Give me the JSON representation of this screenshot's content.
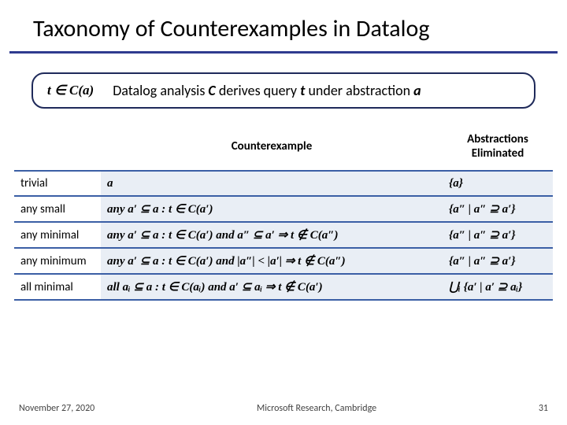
{
  "title": "Taxonomy of Counterexamples in Datalog",
  "defbox": {
    "formula": "t ∈ C(a)",
    "text_prefix": "Datalog analysis ",
    "c": "C",
    "text_mid1": " derives query ",
    "t": "t",
    "text_mid2": " under abstraction ",
    "a": "a"
  },
  "headers": {
    "kind": "",
    "counter": "Counterexample",
    "abst": "Abstractions Eliminated"
  },
  "rows": [
    {
      "kind": "trivial",
      "ce": "a",
      "abs": "{a}"
    },
    {
      "kind": "any small",
      "ce": "any a′ ⊆ a : t ∈ C(a′)",
      "abs": "{a″ | a″ ⊇ a′}"
    },
    {
      "kind": "any minimal",
      "ce": "any a′ ⊆ a : t ∈ C(a′) and a″ ⊆ a′ ⇒ t ∉ C(a″)",
      "abs": "{a″ | a″ ⊇ a′}"
    },
    {
      "kind": "any minimum",
      "ce": "any a′ ⊆ a : t ∈ C(a′) and |a″| < |a′| ⇒ t ∉ C(a″)",
      "abs": "{a″ | a″ ⊇ a′}"
    },
    {
      "kind": "all minimal",
      "ce": "all aᵢ ⊆ a : t ∈ C(aᵢ) and a′ ⊆ aᵢ ⇒ t ∉ C(a′)",
      "abs": "⋃ᵢ {a′ | a′ ⊇ aᵢ}"
    }
  ],
  "footer": {
    "date": "November 27, 2020",
    "venue": "Microsoft Research, Cambridge",
    "page": "31"
  },
  "colors": {
    "rule": "#2f3b8f",
    "rowbg": "#e9eef5",
    "rowline": "#3b5fa5"
  }
}
